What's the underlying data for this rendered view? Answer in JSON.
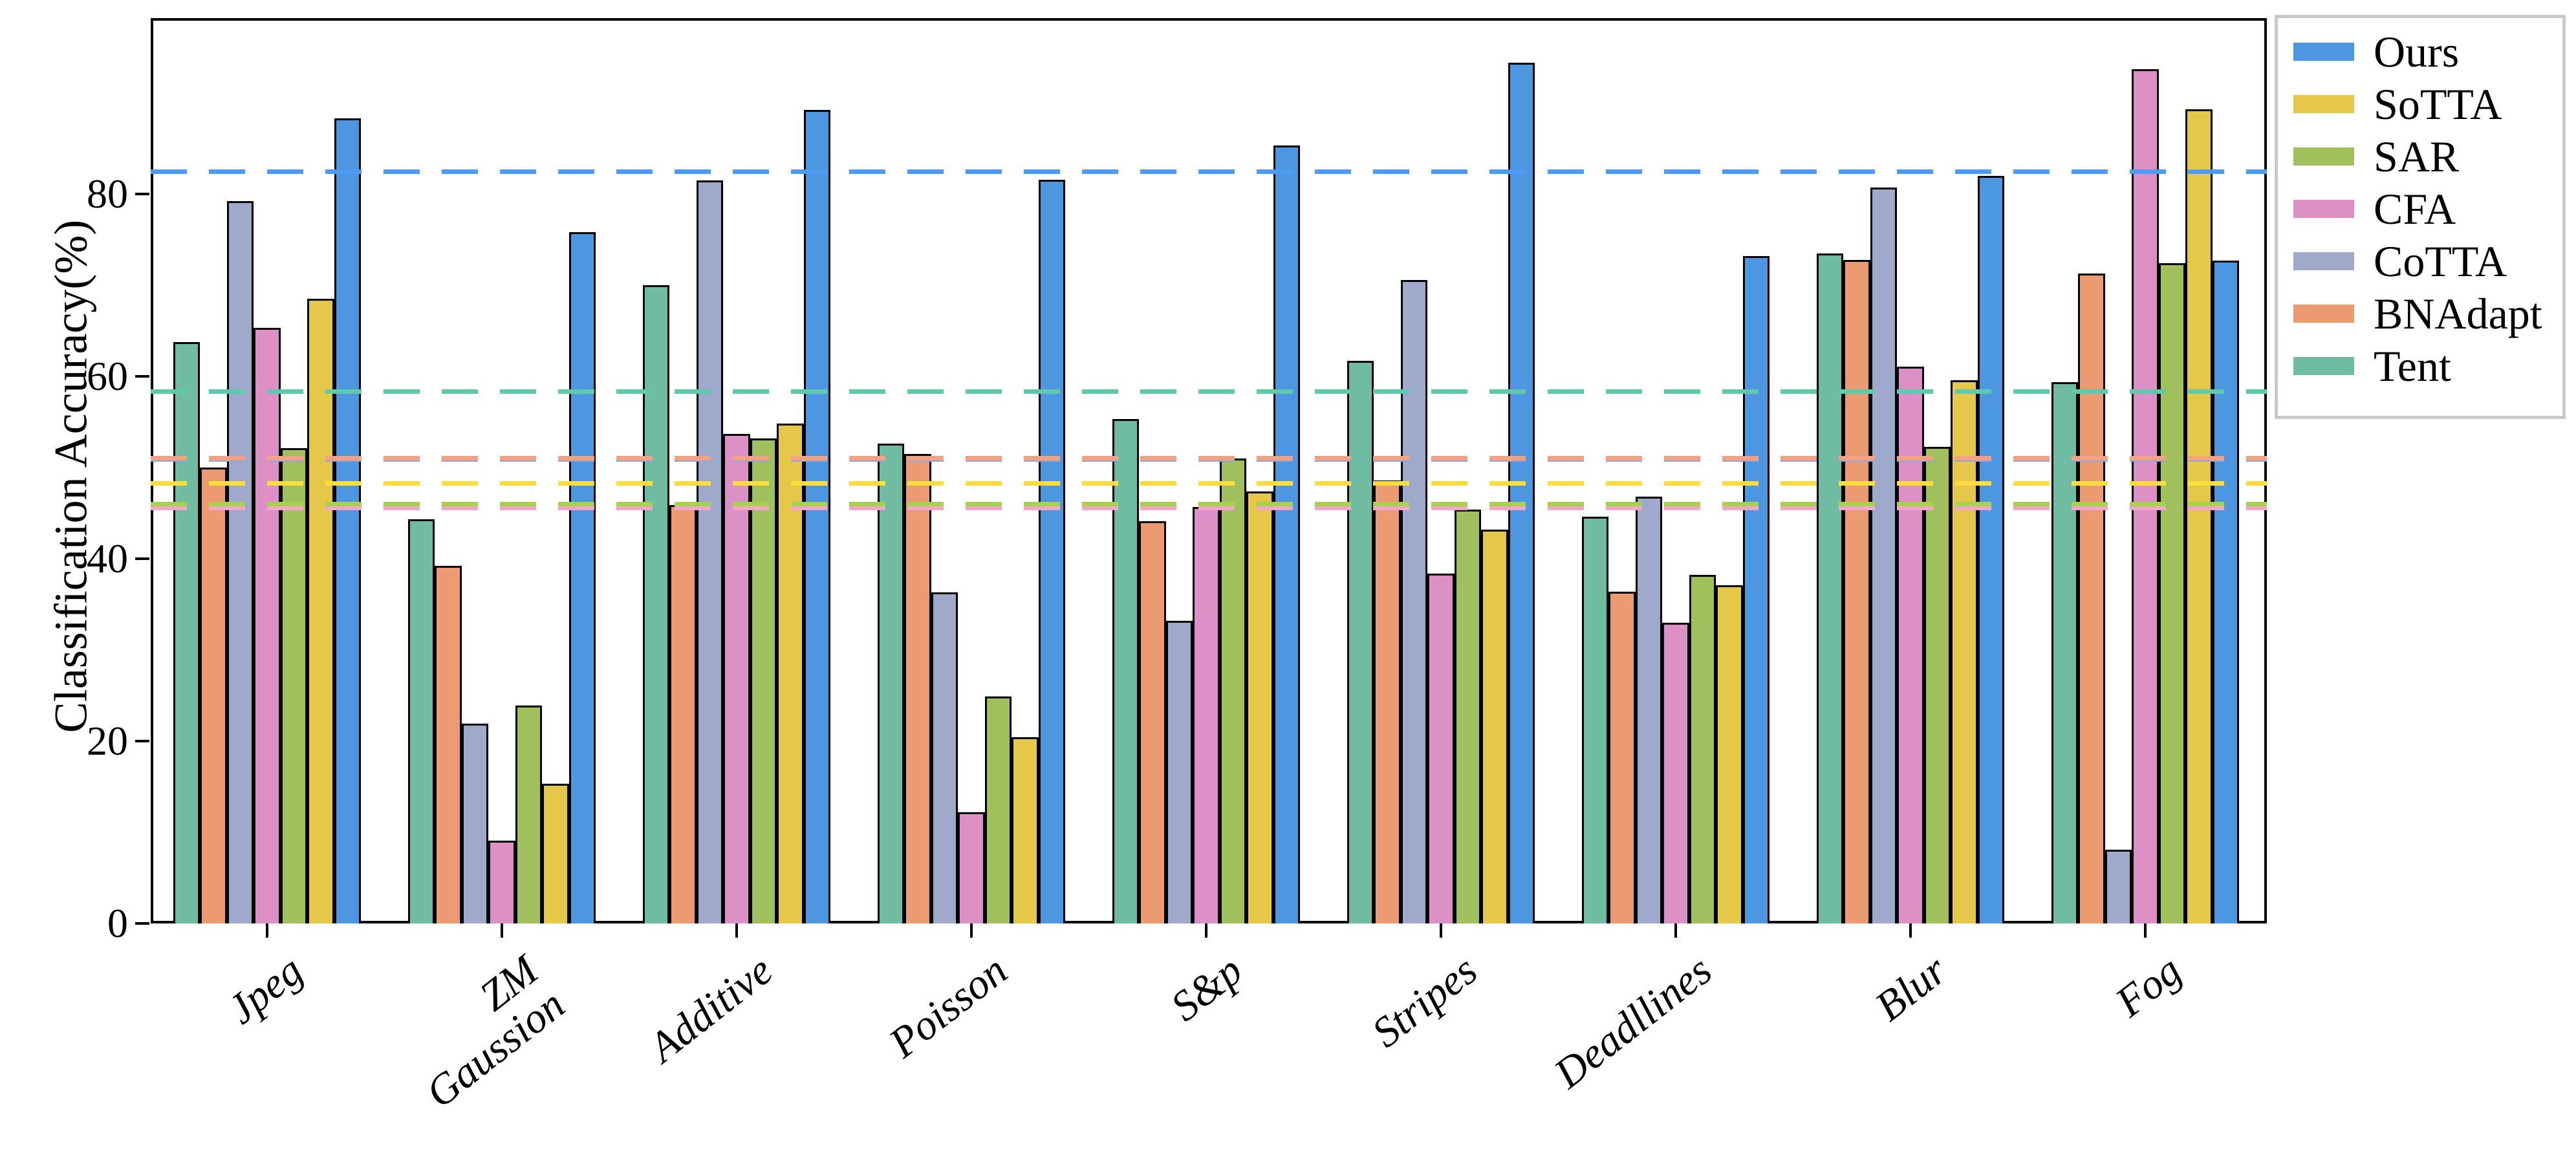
{
  "chart_data": {
    "type": "bar",
    "title": "",
    "xlabel": "",
    "ylabel": "Classification Accuracy(%)",
    "ylim": [
      0,
      99.3
    ],
    "yticks": [
      0,
      20,
      40,
      60,
      80
    ],
    "grid": false,
    "legend_position": "outside-top-right",
    "categories": [
      "Jpeg",
      "ZM\nGaussion",
      "Additive",
      "Poisson",
      "S&p",
      "Stripes",
      "Deadllines",
      "Blur",
      "Fog"
    ],
    "series": [
      {
        "name": "Tent",
        "bar_color": "#6FBCA3",
        "dash_color": "#5FC9AC",
        "mean": 58.4,
        "values": [
          63.8,
          44.3,
          70.0,
          52.6,
          55.3,
          61.7,
          44.6,
          73.5,
          59.4
        ]
      },
      {
        "name": "BNAdapt",
        "bar_color": "#EB9A72",
        "dash_color": "#F2A183",
        "mean": 51.1,
        "values": [
          50.0,
          39.2,
          45.9,
          51.5,
          44.1,
          48.6,
          36.4,
          72.8,
          71.3
        ]
      },
      {
        "name": "CoTTA",
        "bar_color": "#9FA9CC",
        "dash_color": "#93A5D6",
        "mean": 50.9,
        "values": [
          79.2,
          21.9,
          81.5,
          36.3,
          33.2,
          70.6,
          46.8,
          80.7,
          8.1
        ]
      },
      {
        "name": "CFA",
        "bar_color": "#DC90C5",
        "dash_color": "#F2A6C9",
        "mean": 45.6,
        "values": [
          65.3,
          9.1,
          53.7,
          12.2,
          45.7,
          38.4,
          33.0,
          61.1,
          93.7
        ]
      },
      {
        "name": "SAR",
        "bar_color": "#A0C05E",
        "dash_color": "#A9D14D",
        "mean": 46.0,
        "values": [
          52.1,
          23.9,
          53.2,
          24.9,
          51.0,
          45.4,
          38.2,
          52.3,
          72.4
        ]
      },
      {
        "name": "SoTTA",
        "bar_color": "#E5C84A",
        "dash_color": "#FFDD3D",
        "mean": 48.3,
        "values": [
          68.5,
          15.3,
          54.8,
          20.4,
          47.4,
          43.2,
          37.1,
          59.6,
          89.3
        ]
      },
      {
        "name": "Ours",
        "bar_color": "#4D97E0",
        "dash_color": "#4D9BF5",
        "mean": 82.5,
        "values": [
          88.3,
          75.8,
          89.2,
          81.6,
          85.3,
          94.4,
          73.2,
          82.0,
          72.7
        ]
      }
    ],
    "legend_entries": [
      "Ours",
      "SoTTA",
      "SAR",
      "CFA",
      "CoTTA",
      "BNAdapt",
      "Tent"
    ],
    "mean_lines": "dashed horizontal line per series at its mean value"
  },
  "layout_colors": {
    "background": "#ffffff",
    "axis": "#000000",
    "legend_border": "#c9c9c9"
  }
}
